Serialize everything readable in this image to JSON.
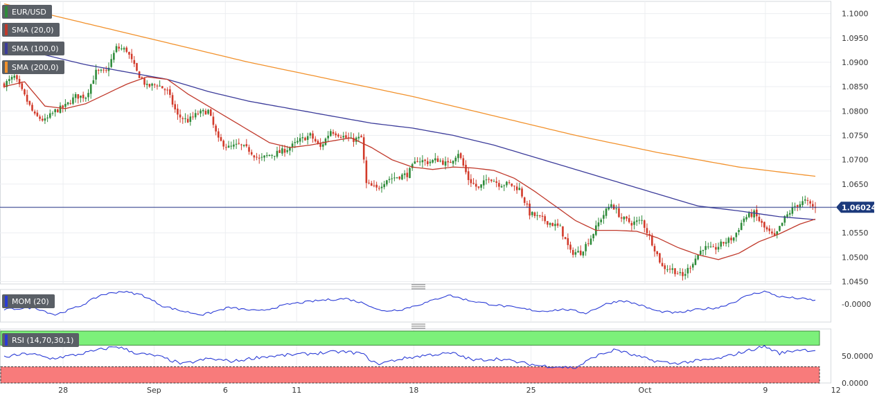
{
  "legend": {
    "pair": "EUR/USD",
    "sma20": "SMA (20,0)",
    "sma100": "SMA (100,0)",
    "sma200": "SMA (200,0)",
    "mom": "MOM (20)",
    "rsi": "RSI (14,70,30,1)"
  },
  "current_price_label": "1.06024",
  "mom_axis_label": "-0.0000",
  "rsi_axis_labels": [
    "50.0000",
    "0.0000"
  ],
  "colors": {
    "bull": "#2e8b3a",
    "bear": "#d23a2a",
    "sma20": "#c0392b",
    "sma100": "#3b3b9a",
    "sma200": "#f2912b",
    "mom_line": "#2a3bd6",
    "rsi_line": "#2a3bd6",
    "rsi_overbought": "#7cf07a",
    "rsi_oversold": "#f87b7b",
    "price_line": "#2b3a8a",
    "price_tag": "#1c3a7c"
  },
  "chart_data": {
    "type": "candlestick",
    "ylim": [
      1.0445,
      1.1025
    ],
    "y_ticks": [
      1.1,
      1.095,
      1.09,
      1.085,
      1.08,
      1.075,
      1.07,
      1.065,
      1.06,
      1.055,
      1.05,
      1.045
    ],
    "y_tick_labels": [
      "1.1000",
      "1.0950",
      "1.0900",
      "1.0850",
      "1.0800",
      "1.0750",
      "1.0700",
      "1.0650",
      "1.0600",
      "1.0550",
      "1.0500",
      "1.0450"
    ],
    "x_ticks": [
      {
        "label": "28",
        "frac": 0.077
      },
      {
        "label": "Sep",
        "frac": 0.188
      },
      {
        "label": "6",
        "frac": 0.275
      },
      {
        "label": "11",
        "frac": 0.362
      },
      {
        "label": "18",
        "frac": 0.505
      },
      {
        "label": "25",
        "frac": 0.648
      },
      {
        "label": "Oct",
        "frac": 0.787
      },
      {
        "label": "9",
        "frac": 0.934
      },
      {
        "label": "12",
        "frac": 1.02
      }
    ],
    "current_price": 1.06024,
    "close_anchors": [
      [
        0,
        1.0855
      ],
      [
        4,
        1.087
      ],
      [
        8,
        1.083
      ],
      [
        12,
        1.079
      ],
      [
        16,
        1.078
      ],
      [
        20,
        1.08
      ],
      [
        24,
        1.081
      ],
      [
        28,
        1.083
      ],
      [
        32,
        1.083
      ],
      [
        36,
        1.088
      ],
      [
        40,
        1.088
      ],
      [
        44,
        1.093
      ],
      [
        48,
        1.0925
      ],
      [
        52,
        1.088
      ],
      [
        56,
        1.085
      ],
      [
        60,
        1.0855
      ],
      [
        64,
        1.084
      ],
      [
        68,
        1.079
      ],
      [
        72,
        1.078
      ],
      [
        76,
        1.0795
      ],
      [
        80,
        1.08
      ],
      [
        84,
        1.074
      ],
      [
        88,
        1.0725
      ],
      [
        92,
        1.073
      ],
      [
        96,
        1.072
      ],
      [
        100,
        1.07
      ],
      [
        104,
        1.071
      ],
      [
        108,
        1.0715
      ],
      [
        112,
        1.0725
      ],
      [
        116,
        1.074
      ],
      [
        120,
        1.075
      ],
      [
        124,
        1.0725
      ],
      [
        128,
        1.076
      ],
      [
        132,
        1.075
      ],
      [
        136,
        1.074
      ],
      [
        140,
        1.0745
      ],
      [
        142,
        1.065
      ],
      [
        146,
        1.064
      ],
      [
        150,
        1.066
      ],
      [
        154,
        1.0665
      ],
      [
        158,
        1.067
      ],
      [
        162,
        1.07
      ],
      [
        166,
        1.0695
      ],
      [
        170,
        1.07
      ],
      [
        174,
        1.069
      ],
      [
        178,
        1.0715
      ],
      [
        182,
        1.066
      ],
      [
        186,
        1.064
      ],
      [
        190,
        1.0665
      ],
      [
        194,
        1.065
      ],
      [
        198,
        1.065
      ],
      [
        202,
        1.064
      ],
      [
        206,
        1.059
      ],
      [
        210,
        1.058
      ],
      [
        214,
        1.057
      ],
      [
        218,
        1.056
      ],
      [
        222,
        1.051
      ],
      [
        226,
        1.051
      ],
      [
        230,
        1.054
      ],
      [
        234,
        1.058
      ],
      [
        238,
        1.061
      ],
      [
        242,
        1.058
      ],
      [
        246,
        1.057
      ],
      [
        250,
        1.0575
      ],
      [
        254,
        1.053
      ],
      [
        258,
        1.048
      ],
      [
        262,
        1.0475
      ],
      [
        266,
        1.046
      ],
      [
        270,
        1.049
      ],
      [
        274,
        1.052
      ],
      [
        278,
        1.0515
      ],
      [
        282,
        1.053
      ],
      [
        286,
        1.054
      ],
      [
        290,
        1.058
      ],
      [
        294,
        1.059
      ],
      [
        298,
        1.056
      ],
      [
        302,
        1.054
      ],
      [
        306,
        1.058
      ],
      [
        310,
        1.0605
      ],
      [
        314,
        1.0615
      ],
      [
        318,
        1.06
      ]
    ],
    "sma20": [
      [
        0,
        1.085
      ],
      [
        8,
        1.086
      ],
      [
        16,
        1.081
      ],
      [
        24,
        1.0805
      ],
      [
        32,
        1.0815
      ],
      [
        40,
        1.0835
      ],
      [
        48,
        1.0855
      ],
      [
        56,
        1.087
      ],
      [
        64,
        1.0865
      ],
      [
        72,
        1.0835
      ],
      [
        80,
        1.081
      ],
      [
        88,
        1.0785
      ],
      [
        96,
        1.076
      ],
      [
        104,
        1.0735
      ],
      [
        112,
        1.0725
      ],
      [
        120,
        1.073
      ],
      [
        128,
        1.0738
      ],
      [
        136,
        1.0745
      ],
      [
        144,
        1.0725
      ],
      [
        152,
        1.07
      ],
      [
        160,
        1.0685
      ],
      [
        168,
        1.068
      ],
      [
        176,
        1.0685
      ],
      [
        184,
        1.0683
      ],
      [
        192,
        1.0678
      ],
      [
        200,
        1.0662
      ],
      [
        208,
        1.0635
      ],
      [
        216,
        1.0605
      ],
      [
        224,
        1.0575
      ],
      [
        232,
        1.0555
      ],
      [
        240,
        1.0555
      ],
      [
        248,
        1.0553
      ],
      [
        256,
        1.054
      ],
      [
        264,
        1.052
      ],
      [
        272,
        1.0505
      ],
      [
        280,
        1.0495
      ],
      [
        288,
        1.0508
      ],
      [
        296,
        1.0532
      ],
      [
        304,
        1.0548
      ],
      [
        312,
        1.0568
      ],
      [
        318,
        1.0578
      ]
    ],
    "sma100": [
      [
        0,
        1.094
      ],
      [
        16,
        1.0915
      ],
      [
        32,
        1.0895
      ],
      [
        48,
        1.088
      ],
      [
        64,
        1.0865
      ],
      [
        80,
        1.084
      ],
      [
        96,
        1.082
      ],
      [
        112,
        1.0805
      ],
      [
        128,
        1.079
      ],
      [
        144,
        1.0775
      ],
      [
        160,
        1.0765
      ],
      [
        176,
        1.075
      ],
      [
        192,
        1.073
      ],
      [
        208,
        1.0705
      ],
      [
        224,
        1.068
      ],
      [
        240,
        1.0655
      ],
      [
        256,
        1.063
      ],
      [
        272,
        1.0605
      ],
      [
        288,
        1.0595
      ],
      [
        304,
        1.0583
      ],
      [
        318,
        1.0577
      ]
    ],
    "sma200": [
      [
        0,
        1.102
      ],
      [
        32,
        1.098
      ],
      [
        64,
        1.094
      ],
      [
        96,
        1.09
      ],
      [
        128,
        1.0865
      ],
      [
        160,
        1.083
      ],
      [
        192,
        1.079
      ],
      [
        224,
        1.075
      ],
      [
        256,
        1.0715
      ],
      [
        288,
        1.0685
      ],
      [
        318,
        1.0666
      ]
    ],
    "mom": {
      "ylim": [
        -0.05,
        0.04
      ],
      "anchors": [
        [
          0,
          -0.015
        ],
        [
          12,
          -0.01
        ],
        [
          20,
          -0.03
        ],
        [
          30,
          -0.005
        ],
        [
          38,
          0.025
        ],
        [
          46,
          0.035
        ],
        [
          54,
          0.025
        ],
        [
          62,
          -0.005
        ],
        [
          70,
          -0.02
        ],
        [
          78,
          -0.03
        ],
        [
          88,
          -0.01
        ],
        [
          100,
          -0.02
        ],
        [
          112,
          0.0
        ],
        [
          124,
          0.01
        ],
        [
          134,
          0.015
        ],
        [
          142,
          0.0
        ],
        [
          148,
          -0.02
        ],
        [
          156,
          -0.015
        ],
        [
          166,
          0.005
        ],
        [
          174,
          0.025
        ],
        [
          182,
          0.01
        ],
        [
          190,
          0.0
        ],
        [
          200,
          -0.01
        ],
        [
          210,
          -0.02
        ],
        [
          220,
          -0.015
        ],
        [
          228,
          -0.025
        ],
        [
          236,
          0.0
        ],
        [
          242,
          0.01
        ],
        [
          248,
          0.0
        ],
        [
          256,
          -0.02
        ],
        [
          264,
          -0.025
        ],
        [
          272,
          -0.015
        ],
        [
          280,
          -0.01
        ],
        [
          286,
          0.005
        ],
        [
          292,
          0.025
        ],
        [
          298,
          0.035
        ],
        [
          304,
          0.02
        ],
        [
          312,
          0.015
        ],
        [
          318,
          0.01
        ]
      ]
    },
    "rsi": {
      "ylim": [
        0,
        100
      ],
      "overbought": 70,
      "oversold": 30,
      "anchors": [
        [
          0,
          48
        ],
        [
          10,
          55
        ],
        [
          18,
          45
        ],
        [
          28,
          52
        ],
        [
          36,
          60
        ],
        [
          44,
          68
        ],
        [
          52,
          55
        ],
        [
          60,
          50
        ],
        [
          70,
          35
        ],
        [
          80,
          45
        ],
        [
          90,
          40
        ],
        [
          100,
          48
        ],
        [
          112,
          52
        ],
        [
          122,
          55
        ],
        [
          132,
          58
        ],
        [
          140,
          55
        ],
        [
          146,
          35
        ],
        [
          156,
          45
        ],
        [
          166,
          52
        ],
        [
          176,
          55
        ],
        [
          184,
          42
        ],
        [
          194,
          45
        ],
        [
          202,
          38
        ],
        [
          210,
          32
        ],
        [
          218,
          30
        ],
        [
          224,
          28
        ],
        [
          232,
          50
        ],
        [
          240,
          62
        ],
        [
          246,
          52
        ],
        [
          254,
          42
        ],
        [
          262,
          36
        ],
        [
          270,
          40
        ],
        [
          280,
          45
        ],
        [
          290,
          58
        ],
        [
          298,
          68
        ],
        [
          304,
          55
        ],
        [
          312,
          62
        ],
        [
          318,
          60
        ]
      ]
    }
  }
}
